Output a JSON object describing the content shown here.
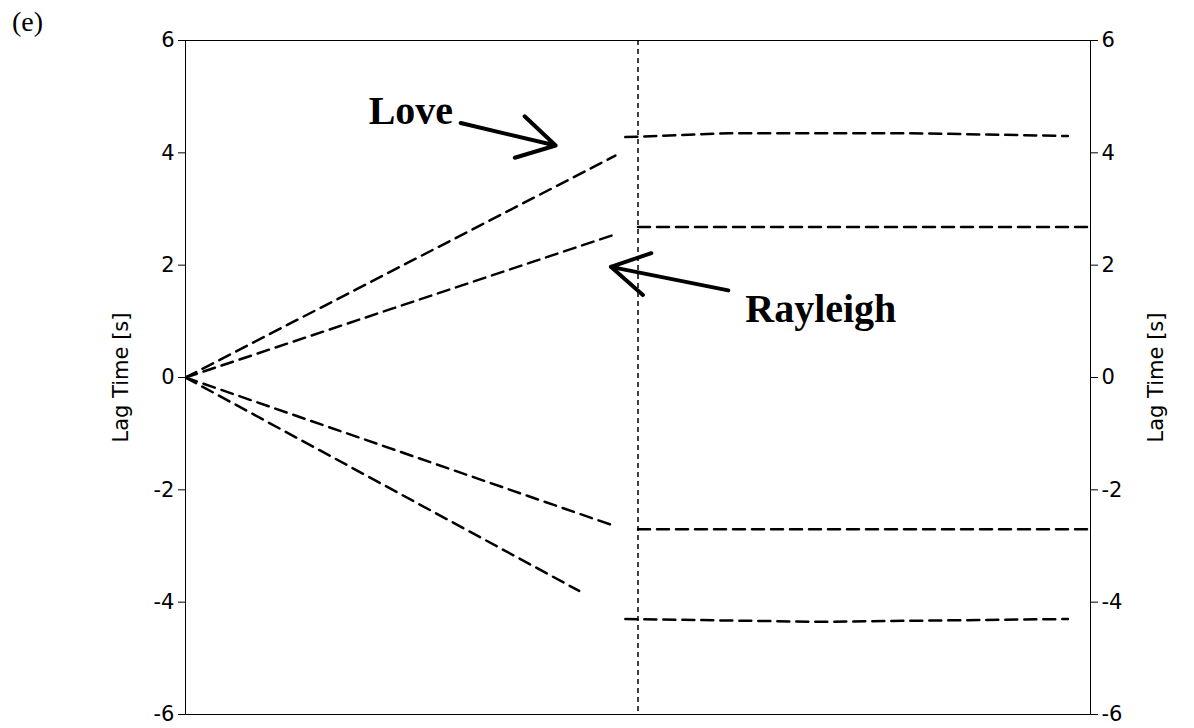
{
  "chart_data": {
    "type": "line",
    "panel_label": "(e)",
    "xlim": [
      0,
      100
    ],
    "ylim": [
      -6,
      6
    ],
    "yticks": [
      -6,
      -4,
      -2,
      0,
      2,
      4,
      6
    ],
    "y_label": "Lag Time [s]",
    "y2lim": [
      -6,
      6
    ],
    "y2ticks": [
      -6,
      -4,
      -2,
      0,
      2,
      4,
      6
    ],
    "y2_label": "Lag Time [s]",
    "tick_labels": "y",
    "grid": false,
    "series": [
      {
        "color": "#000000",
        "line_style": "dashed",
        "x": [
          0,
          47.5
        ],
        "values": [
          0,
          3.95
        ]
      },
      {
        "color": "#000000",
        "line_style": "dashed",
        "x": [
          0,
          47.5
        ],
        "values": [
          0,
          2.55
        ]
      },
      {
        "color": "#000000",
        "line_style": "dashed",
        "x": [
          48.6,
          60,
          80,
          97.5
        ],
        "values": [
          4.28,
          4.35,
          4.35,
          4.3
        ]
      },
      {
        "color": "#000000",
        "line_style": "dashed",
        "x": [
          50,
          100
        ],
        "values": [
          2.68,
          2.68
        ]
      },
      {
        "color": "#000000",
        "line_style": "dashed",
        "x": [
          0,
          47
        ],
        "values": [
          0,
          -2.62
        ]
      },
      {
        "color": "#000000",
        "line_style": "dashed",
        "x": [
          0,
          43.5
        ],
        "values": [
          0,
          -3.8
        ]
      },
      {
        "color": "#000000",
        "line_style": "dashed",
        "x": [
          50,
          100
        ],
        "values": [
          -2.7,
          -2.7
        ]
      },
      {
        "color": "#000000",
        "line_style": "dashed",
        "x": [
          48.6,
          70,
          97.5
        ],
        "values": [
          -4.3,
          -4.35,
          -4.3
        ]
      }
    ],
    "vlines": [
      50
    ],
    "annotations": [
      {
        "text": "Love",
        "x": 24.9,
        "y": 4.74,
        "arrow_x": 40.9,
        "arrow_y": 4.13
      },
      {
        "text": "Rayleigh",
        "x": 70.2,
        "y": 1.22,
        "arrow_x": 47,
        "arrow_y": 1.97
      }
    ]
  }
}
